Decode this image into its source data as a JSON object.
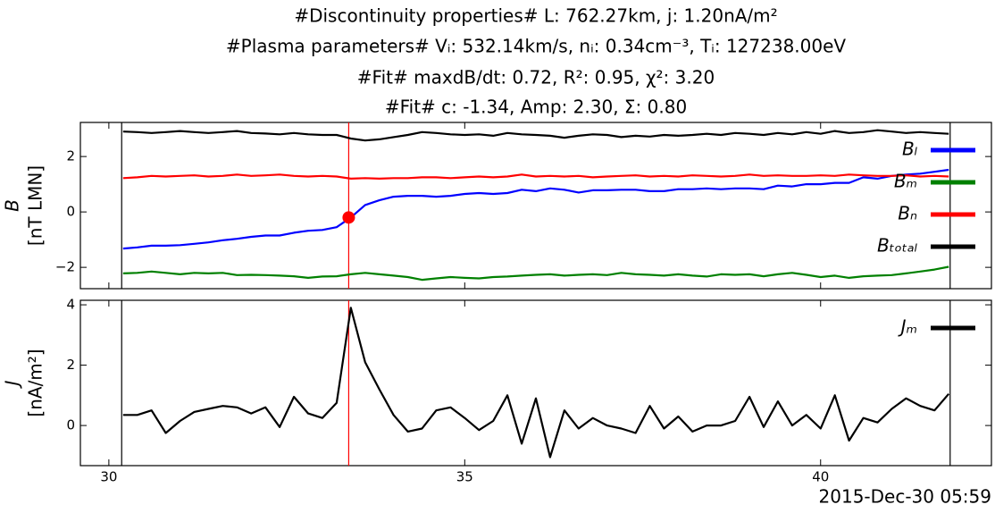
{
  "chart_data": [
    {
      "type": "line",
      "title": [
        "#Discontinuity properties# L: 762.27km, j: 1.20nA/m²",
        "#Plasma parameters# Vᵢ: 532.14km/s, nᵢ: 0.34cm⁻³, Tᵢ: 127238.00eV",
        "#Fit# maxdB/dt: 0.72, R²: 0.95, χ²: 3.20",
        "#Fit# c: -1.34, Amp: 2.30, Σ: 0.80"
      ],
      "ylabel": [
        "B",
        "[nT LMN]"
      ],
      "xlim": [
        29.6,
        42.4
      ],
      "ylim": [
        -2.77,
        3.23
      ],
      "yticks": [
        {
          "value": -2,
          "label": "−2"
        },
        0,
        2
      ],
      "legend": "upper right",
      "x": [
        30.2,
        30.4,
        30.6,
        30.8,
        31.0,
        31.2,
        31.4,
        31.6,
        31.8,
        32.0,
        32.2,
        32.4,
        32.6,
        32.8,
        33.0,
        33.2,
        33.4,
        33.6,
        33.8,
        34.0,
        34.2,
        34.4,
        34.6,
        34.8,
        35.0,
        35.2,
        35.4,
        35.6,
        35.8,
        36.0,
        36.2,
        36.4,
        36.6,
        36.8,
        37.0,
        37.2,
        37.4,
        37.6,
        37.8,
        38.0,
        38.2,
        38.4,
        38.6,
        38.8,
        39.0,
        39.2,
        39.4,
        39.6,
        39.8,
        40.0,
        40.2,
        40.4,
        40.6,
        40.8,
        41.0,
        41.2,
        41.4,
        41.6,
        41.8
      ],
      "series": [
        {
          "name": "Bₗ",
          "color": "#0000ff",
          "values": [
            -1.32,
            -1.28,
            -1.22,
            -1.22,
            -1.2,
            -1.15,
            -1.1,
            -1.02,
            -0.97,
            -0.9,
            -0.85,
            -0.85,
            -0.75,
            -0.68,
            -0.65,
            -0.55,
            -0.2,
            0.25,
            0.42,
            0.55,
            0.58,
            0.58,
            0.55,
            0.58,
            0.65,
            0.68,
            0.65,
            0.68,
            0.8,
            0.75,
            0.85,
            0.8,
            0.7,
            0.78,
            0.78,
            0.8,
            0.8,
            0.75,
            0.75,
            0.82,
            0.82,
            0.85,
            0.82,
            0.85,
            0.85,
            0.82,
            0.95,
            0.92,
            1.0,
            1.0,
            1.05,
            1.05,
            1.25,
            1.2,
            1.3,
            1.35,
            1.38,
            1.45,
            1.52
          ]
        },
        {
          "name": "Bₘ",
          "color": "#008000",
          "values": [
            -2.22,
            -2.2,
            -2.15,
            -2.2,
            -2.25,
            -2.2,
            -2.22,
            -2.2,
            -2.28,
            -2.27,
            -2.28,
            -2.3,
            -2.32,
            -2.38,
            -2.33,
            -2.32,
            -2.25,
            -2.2,
            -2.25,
            -2.3,
            -2.35,
            -2.45,
            -2.4,
            -2.35,
            -2.38,
            -2.4,
            -2.35,
            -2.33,
            -2.3,
            -2.27,
            -2.25,
            -2.3,
            -2.27,
            -2.25,
            -2.28,
            -2.2,
            -2.25,
            -2.27,
            -2.3,
            -2.25,
            -2.3,
            -2.33,
            -2.25,
            -2.27,
            -2.25,
            -2.32,
            -2.25,
            -2.2,
            -2.27,
            -2.35,
            -2.3,
            -2.38,
            -2.32,
            -2.3,
            -2.28,
            -2.22,
            -2.15,
            -2.08,
            -1.98
          ]
        },
        {
          "name": "Bₙ",
          "color": "#ff0000",
          "values": [
            1.22,
            1.25,
            1.3,
            1.28,
            1.3,
            1.32,
            1.28,
            1.3,
            1.35,
            1.3,
            1.32,
            1.35,
            1.3,
            1.28,
            1.3,
            1.28,
            1.2,
            1.22,
            1.2,
            1.22,
            1.22,
            1.25,
            1.25,
            1.22,
            1.25,
            1.28,
            1.25,
            1.28,
            1.35,
            1.28,
            1.3,
            1.28,
            1.3,
            1.25,
            1.28,
            1.3,
            1.32,
            1.28,
            1.3,
            1.28,
            1.32,
            1.3,
            1.28,
            1.3,
            1.35,
            1.3,
            1.32,
            1.3,
            1.3,
            1.32,
            1.3,
            1.35,
            1.32,
            1.3,
            1.3,
            1.32,
            1.28,
            1.3,
            1.28
          ]
        },
        {
          "name": "Bₜₒₜₐₗ",
          "color": "#000000",
          "values": [
            2.9,
            2.88,
            2.85,
            2.88,
            2.92,
            2.88,
            2.85,
            2.88,
            2.92,
            2.85,
            2.83,
            2.8,
            2.85,
            2.8,
            2.78,
            2.78,
            2.65,
            2.58,
            2.62,
            2.7,
            2.78,
            2.88,
            2.85,
            2.8,
            2.78,
            2.8,
            2.75,
            2.85,
            2.8,
            2.78,
            2.75,
            2.68,
            2.75,
            2.8,
            2.78,
            2.7,
            2.75,
            2.72,
            2.78,
            2.75,
            2.78,
            2.82,
            2.78,
            2.85,
            2.82,
            2.78,
            2.85,
            2.8,
            2.88,
            2.82,
            2.92,
            2.85,
            2.88,
            2.95,
            2.9,
            2.85,
            2.88,
            2.85,
            2.82
          ]
        }
      ],
      "vlines": [
        {
          "x": 30.18,
          "color": "#000000"
        },
        {
          "x": 41.82,
          "color": "#000000"
        },
        {
          "x": 33.37,
          "color": "#ff0000"
        }
      ],
      "markers": [
        {
          "x": 33.37,
          "y": -0.2,
          "color": "#ff0000"
        }
      ]
    },
    {
      "type": "line",
      "ylabel": [
        "J",
        "[nA/m²]"
      ],
      "xlabel": "2015-Dec-30 05:59",
      "xlim": [
        29.6,
        42.4
      ],
      "ylim": [
        -1.33,
        4.15
      ],
      "xticks": [
        30,
        35,
        40
      ],
      "yticks": [
        0,
        2,
        4
      ],
      "legend": "upper right",
      "x": [
        30.2,
        30.4,
        30.6,
        30.8,
        31.0,
        31.2,
        31.4,
        31.6,
        31.8,
        32.0,
        32.2,
        32.4,
        32.6,
        32.8,
        33.0,
        33.2,
        33.4,
        33.6,
        33.8,
        34.0,
        34.2,
        34.4,
        34.6,
        34.8,
        35.0,
        35.2,
        35.4,
        35.6,
        35.8,
        36.0,
        36.2,
        36.4,
        36.6,
        36.8,
        37.0,
        37.2,
        37.4,
        37.6,
        37.8,
        38.0,
        38.2,
        38.4,
        38.6,
        38.8,
        39.0,
        39.2,
        39.4,
        39.6,
        39.8,
        40.0,
        40.2,
        40.4,
        40.6,
        40.8,
        41.0,
        41.2,
        41.4,
        41.6,
        41.8
      ],
      "series": [
        {
          "name": "Jₘ",
          "color": "#000000",
          "values": [
            0.35,
            0.35,
            0.5,
            -0.25,
            0.15,
            0.45,
            0.55,
            0.65,
            0.6,
            0.4,
            0.6,
            -0.05,
            0.95,
            0.4,
            0.25,
            0.75,
            3.9,
            2.1,
            1.2,
            0.35,
            -0.2,
            -0.1,
            0.5,
            0.6,
            0.25,
            -0.15,
            0.15,
            1.0,
            -0.6,
            0.9,
            -1.05,
            0.5,
            -0.1,
            0.25,
            0.0,
            -0.1,
            -0.25,
            0.65,
            -0.1,
            0.3,
            -0.2,
            0.0,
            0.0,
            0.15,
            0.95,
            -0.05,
            0.8,
            0.0,
            0.35,
            -0.1,
            1.0,
            -0.5,
            0.25,
            0.1,
            0.55,
            0.9,
            0.65,
            0.5,
            1.05
          ]
        }
      ],
      "vlines": [
        {
          "x": 30.18,
          "color": "#000000"
        },
        {
          "x": 41.82,
          "color": "#000000"
        },
        {
          "x": 33.37,
          "color": "#ff0000"
        }
      ]
    }
  ]
}
